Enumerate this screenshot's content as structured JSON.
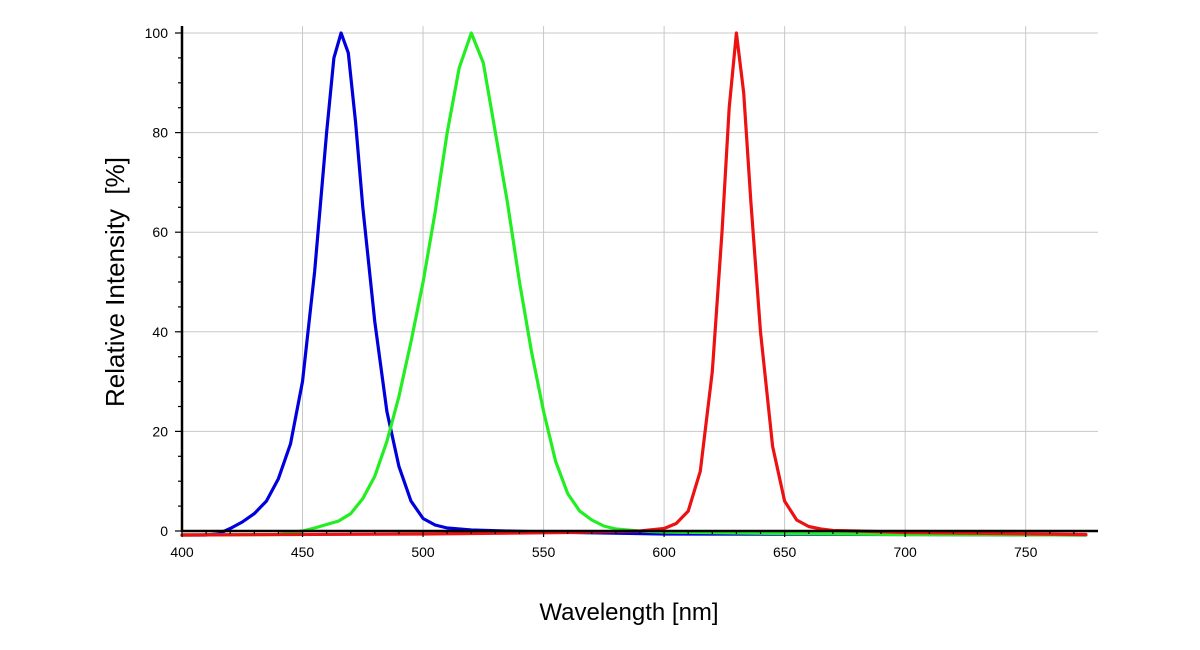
{
  "chart_data": {
    "type": "line",
    "title": "",
    "xlabel": "Wavelength [nm]",
    "ylabel": "Relative Intensity  [%]",
    "xlim": [
      400,
      780
    ],
    "ylim": [
      0,
      100
    ],
    "x_ticks": [
      400,
      450,
      500,
      550,
      600,
      650,
      700,
      750
    ],
    "y_ticks": [
      0,
      20,
      40,
      60,
      80,
      100
    ],
    "grid": true,
    "legend": "none",
    "series": [
      {
        "color": "#0000dd",
        "points": [
          [
            400,
            -0.8
          ],
          [
            410,
            -0.8
          ],
          [
            415,
            -0.6
          ],
          [
            420,
            0.5
          ],
          [
            425,
            1.8
          ],
          [
            430,
            3.5
          ],
          [
            435,
            6.0
          ],
          [
            440,
            10.5
          ],
          [
            445,
            17.5
          ],
          [
            450,
            30
          ],
          [
            455,
            52
          ],
          [
            460,
            80
          ],
          [
            463,
            95
          ],
          [
            466,
            100
          ],
          [
            469,
            96
          ],
          [
            472,
            82
          ],
          [
            475,
            65
          ],
          [
            480,
            42
          ],
          [
            485,
            24
          ],
          [
            490,
            13
          ],
          [
            495,
            6
          ],
          [
            500,
            2.5
          ],
          [
            505,
            1.2
          ],
          [
            510,
            0.6
          ],
          [
            520,
            0.2
          ],
          [
            550,
            -0.2
          ],
          [
            600,
            -0.6
          ],
          [
            700,
            -0.7
          ],
          [
            775,
            -0.8
          ]
        ]
      },
      {
        "color": "#22ee22",
        "points": [
          [
            400,
            -0.8
          ],
          [
            440,
            -0.7
          ],
          [
            450,
            0
          ],
          [
            455,
            0.6
          ],
          [
            460,
            1.3
          ],
          [
            465,
            2.0
          ],
          [
            470,
            3.5
          ],
          [
            475,
            6.5
          ],
          [
            480,
            11
          ],
          [
            485,
            18
          ],
          [
            490,
            27
          ],
          [
            495,
            38
          ],
          [
            500,
            50
          ],
          [
            505,
            64
          ],
          [
            510,
            80
          ],
          [
            515,
            93
          ],
          [
            520,
            100
          ],
          [
            525,
            94
          ],
          [
            530,
            80
          ],
          [
            535,
            66
          ],
          [
            540,
            50
          ],
          [
            545,
            36
          ],
          [
            550,
            24
          ],
          [
            555,
            14
          ],
          [
            560,
            7.5
          ],
          [
            565,
            4
          ],
          [
            570,
            2.2
          ],
          [
            575,
            1.0
          ],
          [
            580,
            0.4
          ],
          [
            590,
            0.0
          ],
          [
            600,
            -0.2
          ],
          [
            650,
            -0.5
          ],
          [
            700,
            -0.7
          ],
          [
            775,
            -0.8
          ]
        ]
      },
      {
        "color": "#ee1111",
        "points": [
          [
            400,
            -0.8
          ],
          [
            500,
            -0.6
          ],
          [
            560,
            -0.3
          ],
          [
            590,
            0
          ],
          [
            600,
            0.5
          ],
          [
            605,
            1.5
          ],
          [
            610,
            4
          ],
          [
            615,
            12
          ],
          [
            620,
            32
          ],
          [
            624,
            60
          ],
          [
            627,
            85
          ],
          [
            630,
            100
          ],
          [
            633,
            88
          ],
          [
            636,
            66
          ],
          [
            640,
            40
          ],
          [
            645,
            17
          ],
          [
            650,
            6
          ],
          [
            655,
            2.2
          ],
          [
            660,
            0.9
          ],
          [
            665,
            0.4
          ],
          [
            670,
            0.1
          ],
          [
            680,
            0
          ],
          [
            700,
            -0.3
          ],
          [
            775,
            -0.7
          ]
        ]
      }
    ]
  }
}
